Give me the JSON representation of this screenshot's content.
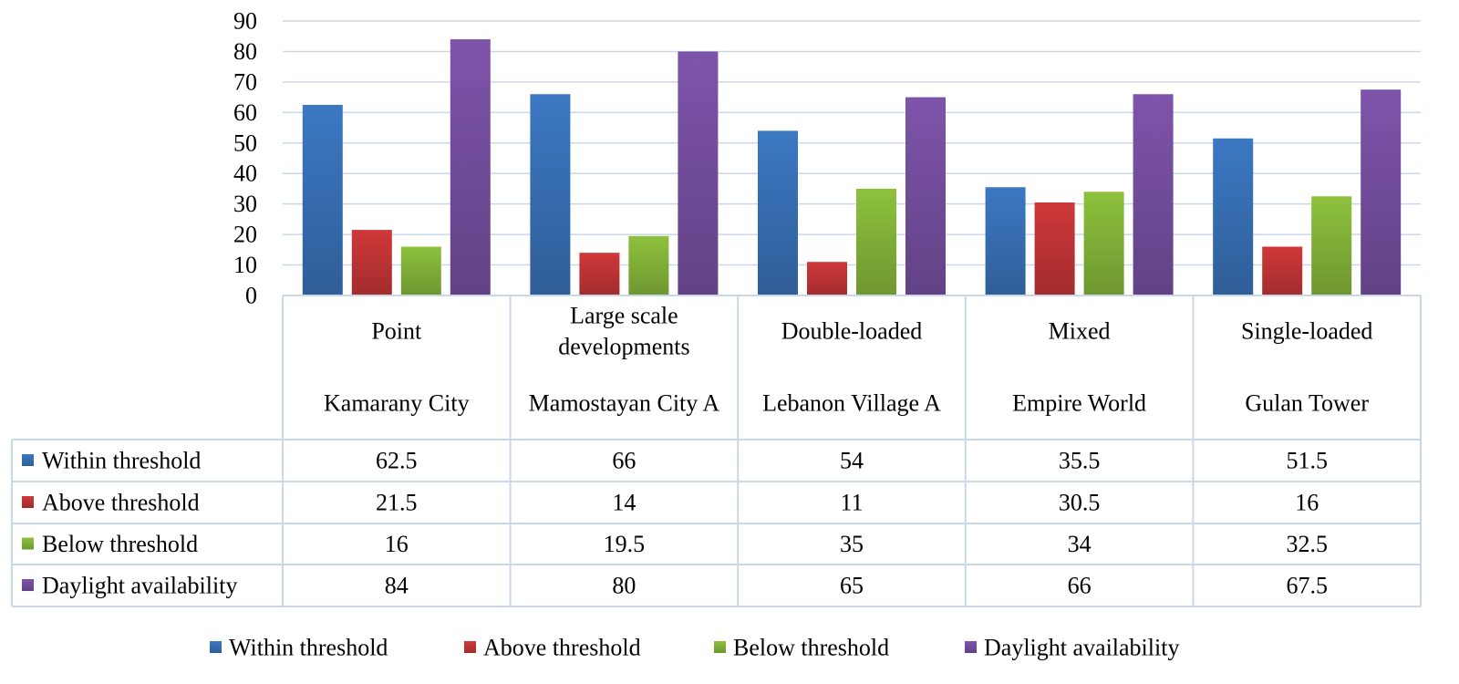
{
  "chart_data": {
    "type": "bar",
    "title": "",
    "xlabel": "",
    "ylabel": "",
    "ylim": [
      0,
      90
    ],
    "yticks": [
      0,
      10,
      20,
      30,
      40,
      50,
      60,
      70,
      80,
      90
    ],
    "grid": true,
    "legend_position": "bottom",
    "data_table": true,
    "categories": [
      {
        "type": "Point",
        "project": "Kamarany City"
      },
      {
        "type": "Large scale developments",
        "project": "Mamostayan City A"
      },
      {
        "type": "Double-loaded",
        "project": "Lebanon Village A"
      },
      {
        "type": "Mixed",
        "project": "Empire World"
      },
      {
        "type": "Single-loaded",
        "project": "Gulan Tower"
      }
    ],
    "series": [
      {
        "name": "Within threshold",
        "color": "#3C78C3",
        "values": [
          62.5,
          66,
          54,
          35.5,
          51.5
        ]
      },
      {
        "name": "Above threshold",
        "color": "#D0383A",
        "values": [
          21.5,
          14,
          11,
          30.5,
          16
        ]
      },
      {
        "name": "Below threshold",
        "color": "#8DC13D",
        "values": [
          16,
          19.5,
          35,
          34,
          32.5
        ]
      },
      {
        "name": "Daylight availability",
        "color": "#7E54AB",
        "values": [
          84,
          80,
          65,
          66,
          67.5
        ]
      }
    ]
  }
}
